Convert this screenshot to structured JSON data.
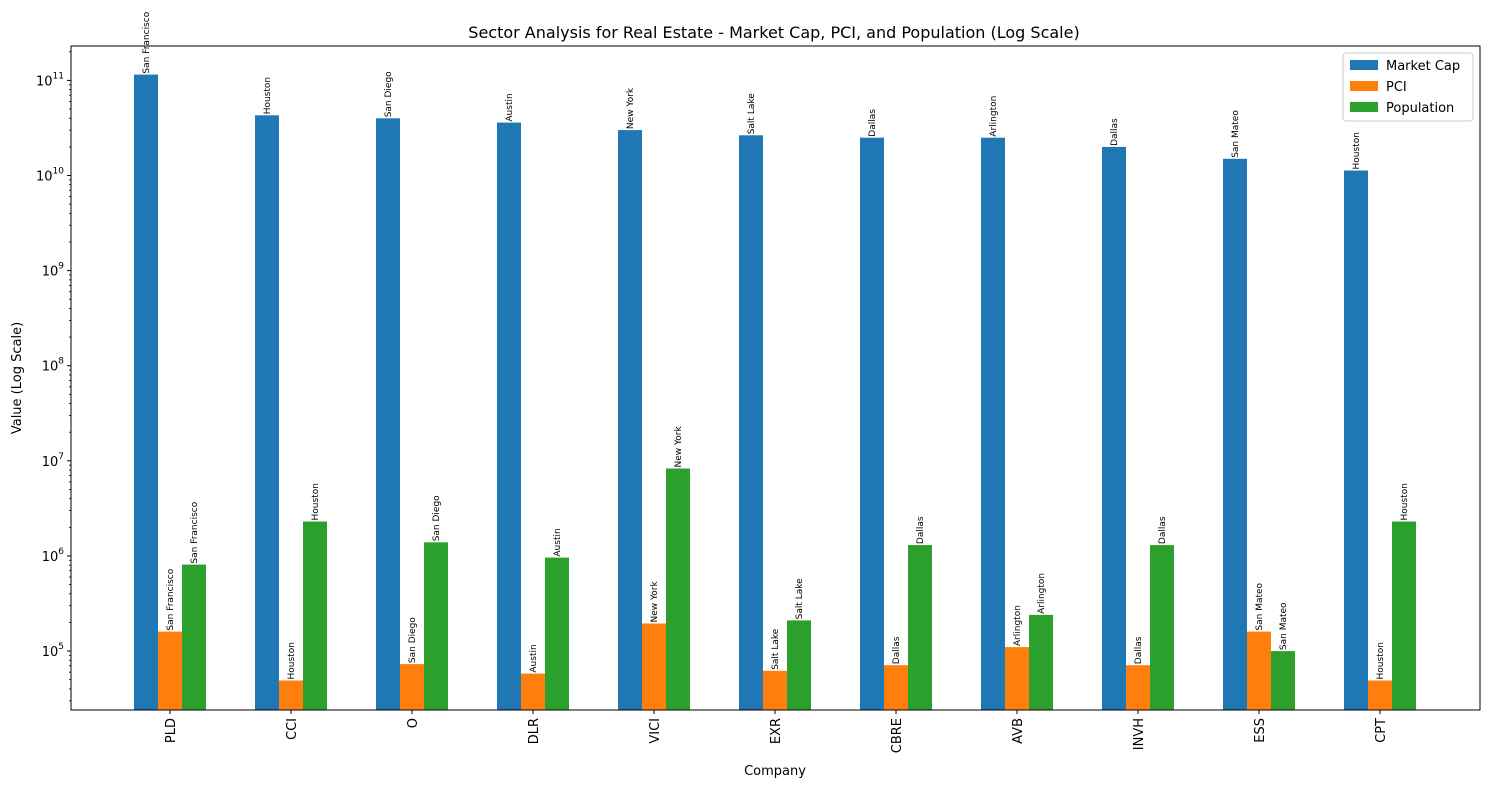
{
  "chart_data": {
    "type": "bar",
    "title": "Sector Analysis for Real Estate - Market Cap, PCI, and Population (Log Scale)",
    "xlabel": "Company",
    "ylabel": "Value (Log Scale)",
    "yscale": "log",
    "ylim": [
      24000,
      230000000000
    ],
    "ytick_exponents": [
      5,
      6,
      7,
      8,
      9,
      10,
      11
    ],
    "legend_position": "top-right",
    "categories": [
      "PLD",
      "CCI",
      "O",
      "DLR",
      "VICI",
      "EXR",
      "CBRE",
      "AVB",
      "INVH",
      "ESS",
      "CPT"
    ],
    "cities": [
      "San Francisco",
      "Houston",
      "San Diego",
      "Austin",
      "New York",
      "Salt Lake",
      "Dallas",
      "Arlington",
      "Dallas",
      "San Mateo",
      "Houston"
    ],
    "series": [
      {
        "name": "Market Cap",
        "color": "#1f77b4",
        "values": [
          115000000000,
          43000000000,
          40000000000,
          36000000000,
          30000000000,
          26500000000,
          25000000000,
          25000000000,
          20000000000,
          15000000000,
          11300000000
        ]
      },
      {
        "name": "PCI",
        "color": "#ff7f0e",
        "values": [
          160000,
          49000,
          73000,
          58000,
          195000,
          62000,
          71000,
          110000,
          71000,
          160000,
          49000
        ]
      },
      {
        "name": "Population",
        "color": "#2ca02c",
        "values": [
          810000,
          2300000,
          1390000,
          960000,
          8300000,
          210000,
          1300000,
          240000,
          1300000,
          100000,
          2300000
        ]
      }
    ]
  }
}
